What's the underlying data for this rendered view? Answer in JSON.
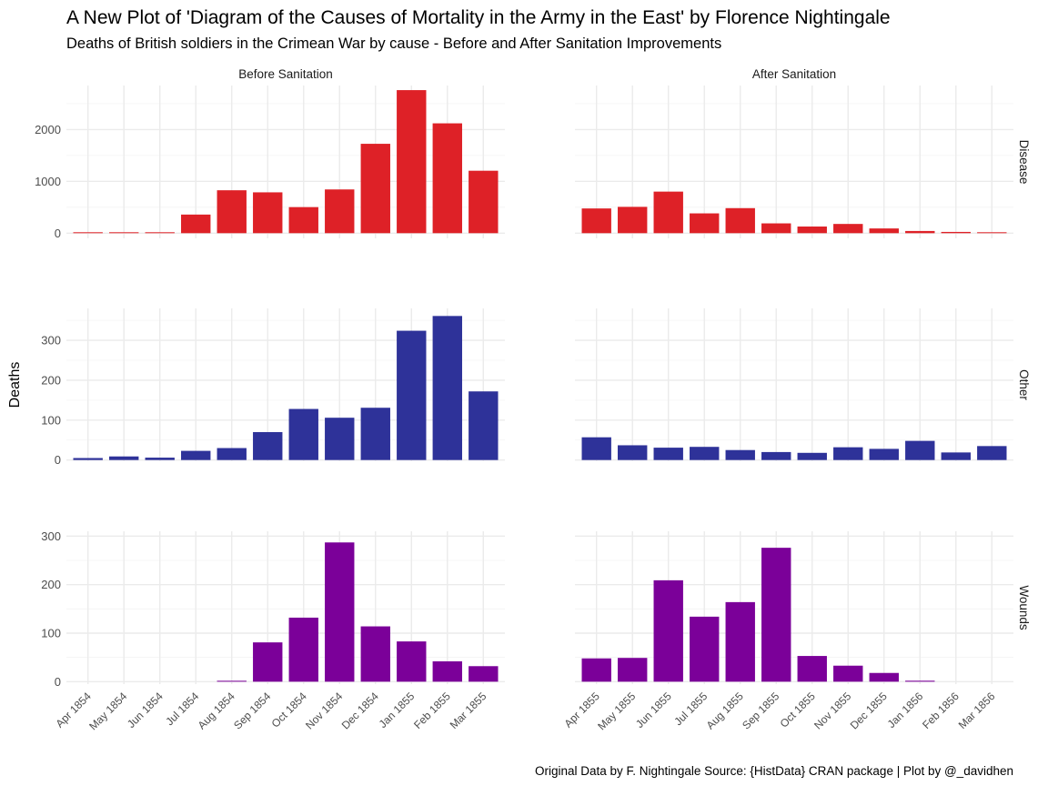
{
  "title": "A New Plot of 'Diagram of the Causes of Mortality in the Army in the East' by Florence Nightingale",
  "subtitle": "Deaths of British soldiers in the Crimean War by cause - Before and After Sanitation Improvements",
  "caption": "Original Data by F. Nightingale Source: {HistData} CRAN package | Plot by @_davidhen",
  "chart_data": {
    "type": "bar",
    "ylabel": "Deaths",
    "columns": [
      {
        "label": "Before Sanitation",
        "categories": [
          "Apr 1854",
          "May 1854",
          "Jun 1854",
          "Jul 1854",
          "Aug 1854",
          "Sep 1854",
          "Oct 1854",
          "Nov 1854",
          "Dec 1854",
          "Jan 1855",
          "Feb 1855",
          "Mar 1855"
        ]
      },
      {
        "label": "After Sanitation",
        "categories": [
          "Apr 1855",
          "May 1855",
          "Jun 1855",
          "Jul 1855",
          "Aug 1855",
          "Sep 1855",
          "Oct 1855",
          "Nov 1855",
          "Dec 1855",
          "Jan 1856",
          "Feb 1856",
          "Mar 1856"
        ]
      }
    ],
    "rows": [
      {
        "label": "Disease",
        "color": "#de2127",
        "ylim": [
          -100,
          2850
        ],
        "ticks": [
          0,
          1000,
          2000
        ],
        "values": [
          [
            1,
            12,
            11,
            359,
            828,
            788,
            503,
            844,
            1725,
            2761,
            2120,
            1205
          ],
          [
            477,
            508,
            802,
            382,
            483,
            189,
            128,
            178,
            91,
            42,
            24,
            15
          ]
        ]
      },
      {
        "label": "Other",
        "color": "#2e3299",
        "ylim": [
          -3,
          380
        ],
        "ticks": [
          0,
          100,
          200,
          300
        ],
        "values": [
          [
            5,
            9,
            6,
            23,
            30,
            70,
            128,
            106,
            131,
            324,
            361,
            172
          ],
          [
            57,
            37,
            31,
            33,
            25,
            20,
            18,
            32,
            28,
            48,
            19,
            35
          ]
        ]
      },
      {
        "label": "Wounds",
        "color": "#7b0099",
        "ylim": [
          -5,
          310
        ],
        "ticks": [
          0,
          100,
          200,
          300
        ],
        "values": [
          [
            0,
            0,
            0,
            0,
            1,
            81,
            132,
            287,
            114,
            83,
            42,
            32
          ],
          [
            48,
            49,
            209,
            134,
            164,
            276,
            53,
            33,
            18,
            2,
            0,
            0
          ]
        ]
      }
    ]
  }
}
